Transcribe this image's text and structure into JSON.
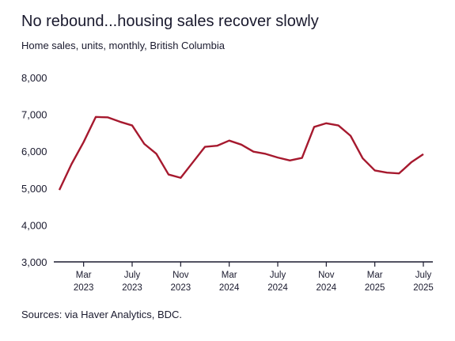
{
  "chart_data": {
    "type": "line",
    "title": "No rebound...housing sales recover slowly",
    "subtitle": "Home sales, units, monthly, British Columbia",
    "source": "Sources: via Haver Analytics, BDC.",
    "x": [
      "2023-01",
      "2023-02",
      "2023-03",
      "2023-04",
      "2023-05",
      "2023-06",
      "2023-07",
      "2023-08",
      "2023-09",
      "2023-10",
      "2023-11",
      "2023-12",
      "2024-01",
      "2024-02",
      "2024-03",
      "2024-04",
      "2024-05",
      "2024-06",
      "2024-07",
      "2024-08",
      "2024-09",
      "2024-10",
      "2024-11",
      "2024-12",
      "2025-01",
      "2025-02",
      "2025-03",
      "2025-04",
      "2025-05",
      "2025-06",
      "2025-07"
    ],
    "series": [
      {
        "name": "Home sales",
        "color": "#a6192e",
        "values": [
          4950,
          5650,
          6250,
          6930,
          6920,
          6800,
          6700,
          6200,
          5930,
          5370,
          5280,
          5700,
          6120,
          6150,
          6290,
          6180,
          5990,
          5930,
          5830,
          5750,
          5820,
          6660,
          6760,
          6700,
          6420,
          5810,
          5480,
          5420,
          5400,
          5700,
          5920
        ]
      }
    ],
    "xticks": [
      {
        "value": "2023-03",
        "label": "Mar 2023"
      },
      {
        "value": "2023-07",
        "label": "July 2023"
      },
      {
        "value": "2023-11",
        "label": "Nov 2023"
      },
      {
        "value": "2024-03",
        "label": "Mar 2024"
      },
      {
        "value": "2024-07",
        "label": "July 2024"
      },
      {
        "value": "2024-11",
        "label": "Nov 2024"
      },
      {
        "value": "2025-03",
        "label": "Mar 2025"
      },
      {
        "value": "2025-07",
        "label": "July 2025"
      }
    ],
    "ylim": [
      3000,
      8000
    ],
    "yticks": [
      {
        "value": 3000,
        "label": "3,000"
      },
      {
        "value": 4000,
        "label": "4,000"
      },
      {
        "value": 5000,
        "label": "5,000"
      },
      {
        "value": 6000,
        "label": "6,000"
      },
      {
        "value": 7000,
        "label": "7,000"
      },
      {
        "value": 8000,
        "label": "8,000"
      }
    ],
    "grid": false
  }
}
